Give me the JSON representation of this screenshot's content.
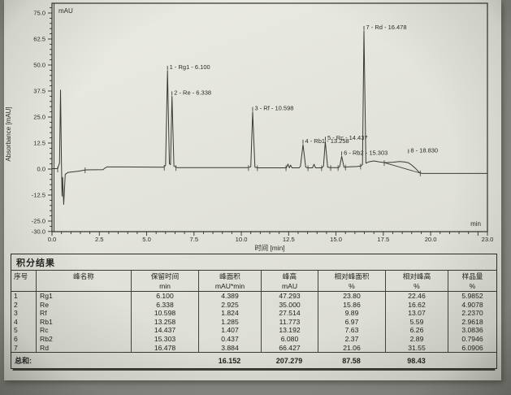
{
  "chart_data": {
    "type": "line",
    "title": "",
    "xlabel": "时间 [min]",
    "ylabel": "Absorbance [mAU]",
    "unit_label": "mAU",
    "inner_x_unit": "min",
    "xlim": [
      0,
      23
    ],
    "ylim": [
      -30,
      80
    ],
    "x_tick_labels": [
      0,
      2.5,
      5,
      7.5,
      10,
      12.5,
      15,
      17.5,
      20,
      23
    ],
    "y_tick_labels": [
      75,
      62.5,
      50,
      37.5,
      25,
      12.5,
      0,
      -12.5,
      -25,
      -30
    ],
    "grid": false,
    "peaks": [
      {
        "num": 1,
        "name": "Rg1",
        "rt": 6.1,
        "height": 47.293,
        "label": "1 - Rg1 - 6.100"
      },
      {
        "num": 2,
        "name": "Re",
        "rt": 6.338,
        "height": 35.0,
        "label": "2 - Re - 6.338"
      },
      {
        "num": 3,
        "name": "Rf",
        "rt": 10.598,
        "height": 27.514,
        "label": "3 - Rf - 10.598"
      },
      {
        "num": 4,
        "name": "Rb1",
        "rt": 13.258,
        "height": 11.773,
        "label": "4 - Rb1 - 13.258"
      },
      {
        "num": 5,
        "name": "Rc",
        "rt": 14.437,
        "height": 13.192,
        "label": "5 - Rc - 14.437"
      },
      {
        "num": 6,
        "name": "Rb2",
        "rt": 15.303,
        "height": 6.08,
        "label": "6 - Rb2 - 15.303"
      },
      {
        "num": 7,
        "name": "Rd",
        "rt": 16.478,
        "height": 66.427,
        "label": "7 - Rd - 16.478"
      },
      {
        "num": 8,
        "name": "",
        "rt": 18.83,
        "height": 3.0,
        "label": "8 - 18.830",
        "label_v": 7.2
      }
    ],
    "trace": [
      [
        0,
        0.2
      ],
      [
        0.3,
        0.2
      ],
      [
        0.4,
        3
      ],
      [
        0.45,
        38
      ],
      [
        0.5,
        2
      ],
      [
        0.53,
        -13
      ],
      [
        0.56,
        -4
      ],
      [
        0.62,
        -17
      ],
      [
        0.7,
        -2.5
      ],
      [
        0.85,
        -1.6
      ],
      [
        1.4,
        -1.0
      ],
      [
        1.8,
        -0.4
      ],
      [
        2.7,
        -0.3
      ],
      [
        2.78,
        0.4
      ],
      [
        2.9,
        1.0
      ],
      [
        3.8,
        1.0
      ],
      [
        5.9,
        0.9
      ],
      [
        6.0,
        1.8
      ],
      [
        6.1,
        47.293
      ],
      [
        6.2,
        2.6
      ],
      [
        6.26,
        2.1
      ],
      [
        6.338,
        35.0
      ],
      [
        6.44,
        1.4
      ],
      [
        6.6,
        0.7
      ],
      [
        10.35,
        0.7
      ],
      [
        10.5,
        1.1
      ],
      [
        10.598,
        27.514
      ],
      [
        10.72,
        0.9
      ],
      [
        10.9,
        0.6
      ],
      [
        12.38,
        0.6
      ],
      [
        12.46,
        2.4
      ],
      [
        12.54,
        0.6
      ],
      [
        12.6,
        1.9
      ],
      [
        12.68,
        0.6
      ],
      [
        13.05,
        0.6
      ],
      [
        13.12,
        1.3
      ],
      [
        13.258,
        11.773
      ],
      [
        13.4,
        0.9
      ],
      [
        13.5,
        0.6
      ],
      [
        13.76,
        0.6
      ],
      [
        13.84,
        2.3
      ],
      [
        13.92,
        0.6
      ],
      [
        14.26,
        0.6
      ],
      [
        14.34,
        1.4
      ],
      [
        14.437,
        13.192
      ],
      [
        14.56,
        0.9
      ],
      [
        14.7,
        0.7
      ],
      [
        15.13,
        0.7
      ],
      [
        15.2,
        1.3
      ],
      [
        15.303,
        6.08
      ],
      [
        15.42,
        0.9
      ],
      [
        15.6,
        1.0
      ],
      [
        16.1,
        1.2
      ],
      [
        16.32,
        1.5
      ],
      [
        16.4,
        2.2
      ],
      [
        16.478,
        66.427
      ],
      [
        16.58,
        2.8
      ],
      [
        16.72,
        3.4
      ],
      [
        17.0,
        3.9
      ],
      [
        17.3,
        3.4
      ],
      [
        17.6,
        3.1
      ],
      [
        18.0,
        3.3
      ],
      [
        18.35,
        3.6
      ],
      [
        18.6,
        3.4
      ],
      [
        18.83,
        3.0
      ],
      [
        19.0,
        1.9
      ],
      [
        19.2,
        0.3
      ],
      [
        19.42,
        -1.8
      ],
      [
        19.55,
        -2.1
      ],
      [
        21,
        -2.1
      ],
      [
        23,
        -2.1
      ]
    ],
    "integration_lines": [
      [
        [
          17.55,
          3.1
        ],
        [
          19.44,
          -1.9
        ]
      ]
    ],
    "boundary_ticks": [
      [
        0.3,
        0
      ],
      [
        1.75,
        -0.4
      ],
      [
        5.93,
        0.8
      ],
      [
        6.55,
        0.7
      ],
      [
        10.38,
        0.7
      ],
      [
        10.85,
        0.6
      ],
      [
        12.36,
        0.6
      ],
      [
        13.52,
        0.6
      ],
      [
        14.24,
        0.6
      ],
      [
        14.72,
        0.7
      ],
      [
        15.11,
        0.7
      ],
      [
        15.5,
        0.9
      ],
      [
        16.3,
        1.4
      ],
      [
        17.55,
        3.1
      ],
      [
        19.45,
        -1.9
      ]
    ],
    "colors": {
      "trace": "#3a3a37",
      "axis": "#2f2f2b",
      "text": "#2c2c28"
    }
  },
  "table": {
    "title": "积分结果",
    "columns": [
      {
        "label": "序号",
        "unit": ""
      },
      {
        "label": "峰名称",
        "unit": ""
      },
      {
        "label": "保留时间",
        "unit": "min"
      },
      {
        "label": "峰面积",
        "unit": "mAU*min"
      },
      {
        "label": "峰高",
        "unit": "mAU"
      },
      {
        "label": "相对峰面积",
        "unit": "%"
      },
      {
        "label": "相对峰高",
        "unit": "%"
      },
      {
        "label": "样品量",
        "unit": "%"
      }
    ],
    "rows": [
      [
        "1",
        "Rg1",
        "6.100",
        "4.389",
        "47.293",
        "23.80",
        "22.46",
        "5.9852"
      ],
      [
        "2",
        "Re",
        "6.338",
        "2.925",
        "35.000",
        "15.86",
        "16.62",
        "4.9078"
      ],
      [
        "3",
        "Rf",
        "10.598",
        "1.824",
        "27.514",
        "9.89",
        "13.07",
        "2.2370"
      ],
      [
        "4",
        "Rb1",
        "13.258",
        "1.285",
        "11.773",
        "6.97",
        "5.59",
        "2.9618"
      ],
      [
        "5",
        "Rc",
        "14.437",
        "1.407",
        "13.192",
        "7.63",
        "6.26",
        "3.0836"
      ],
      [
        "6",
        "Rb2",
        "15.303",
        "0.437",
        "6.080",
        "2.37",
        "2.89",
        "0.7946"
      ],
      [
        "7",
        "Rd",
        "16.478",
        "3.884",
        "66.427",
        "21.06",
        "31.55",
        "6.0906"
      ]
    ],
    "total": {
      "label": "总和:",
      "values": [
        "",
        "",
        "",
        "16.152",
        "207.279",
        "87.58",
        "98.43",
        ""
      ]
    }
  }
}
